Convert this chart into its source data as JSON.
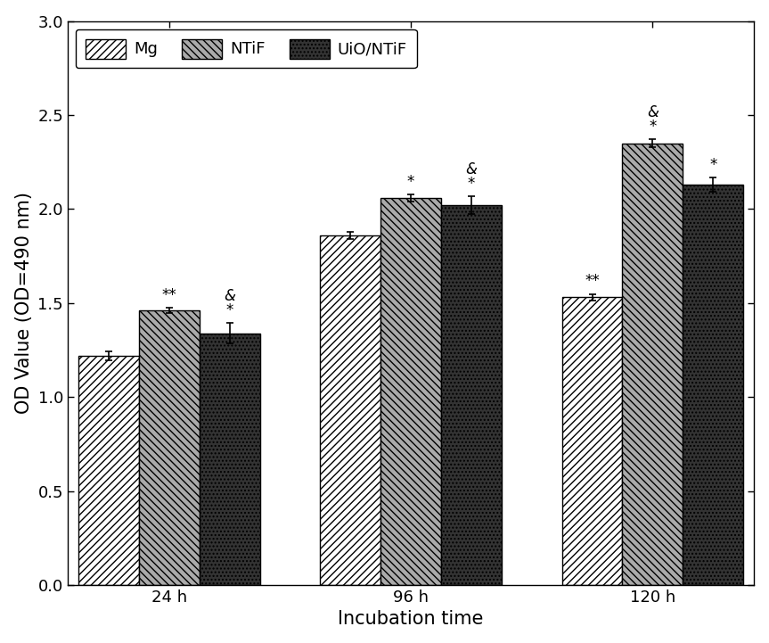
{
  "groups": [
    "24 h",
    "96 h",
    "120 h"
  ],
  "series": [
    "Mg",
    "NTiF",
    "UiO/NTiF"
  ],
  "values": [
    [
      1.22,
      1.46,
      1.34
    ],
    [
      1.86,
      2.06,
      2.02
    ],
    [
      1.53,
      2.35,
      2.13
    ]
  ],
  "errors": [
    [
      0.025,
      0.015,
      0.055
    ],
    [
      0.018,
      0.018,
      0.048
    ],
    [
      0.018,
      0.022,
      0.038
    ]
  ],
  "bar_annotations": {
    "24h_1_text": "**",
    "24h_2_text": "&\n*",
    "96h_1_text": "*",
    "96h_2_text": "&\n*",
    "120h_0_text": "**",
    "120h_1_text": "&\n*",
    "120h_2_text": "*"
  },
  "ylabel": "OD Value (OD=490 nm)",
  "xlabel": "Incubation time",
  "ylim": [
    0.0,
    3.0
  ],
  "yticks": [
    0.0,
    0.5,
    1.0,
    1.5,
    2.0,
    2.5,
    3.0
  ],
  "legend_labels": [
    "Mg",
    "NTiF",
    "UiO/NTiF"
  ],
  "bar_width": 0.25,
  "group_positions": [
    0.0,
    1.0,
    2.0
  ],
  "bg_color": "#ffffff",
  "bar_edge_color": "#000000",
  "hatch_patterns": [
    "////",
    "\\\\\\\\",
    "...."
  ],
  "bar_facecolors": [
    "#ffffff",
    "#aaaaaa",
    "#333333"
  ],
  "annotation_fontsize": 12,
  "label_fontsize": 15,
  "tick_fontsize": 13,
  "legend_fontsize": 13,
  "xlim": [
    -0.42,
    2.42
  ]
}
